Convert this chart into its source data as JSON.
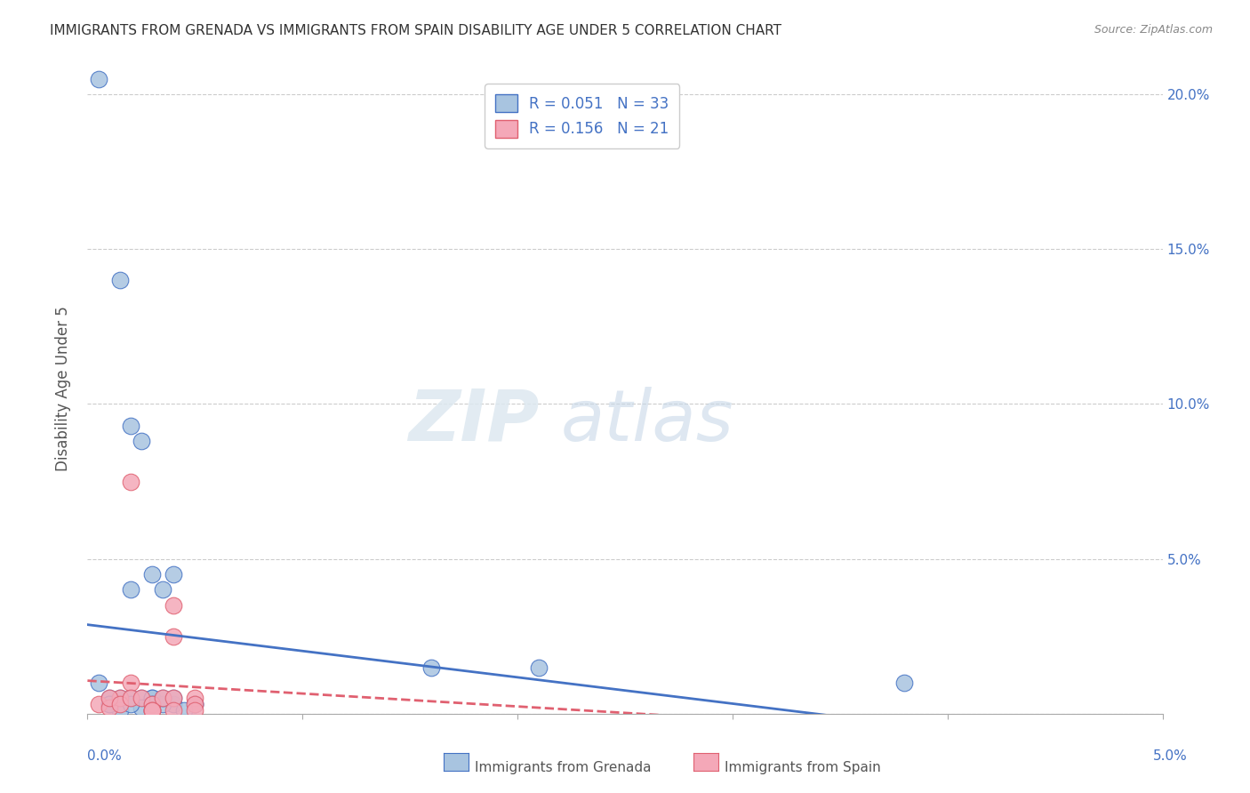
{
  "title": "IMMIGRANTS FROM GRENADA VS IMMIGRANTS FROM SPAIN DISABILITY AGE UNDER 5 CORRELATION CHART",
  "source": "Source: ZipAtlas.com",
  "ylabel": "Disability Age Under 5",
  "yticks": [
    0.0,
    0.05,
    0.1,
    0.15,
    0.2
  ],
  "ytick_labels": [
    "",
    "5.0%",
    "10.0%",
    "15.0%",
    "20.0%"
  ],
  "xlim": [
    0.0,
    0.05
  ],
  "ylim": [
    0.0,
    0.21
  ],
  "grenada_R": "0.051",
  "grenada_N": "33",
  "spain_R": "0.156",
  "spain_N": "21",
  "grenada_color": "#a8c4e0",
  "spain_color": "#f4a8b8",
  "grenada_line_color": "#4472c4",
  "spain_line_color": "#e06070",
  "watermark_zip": "ZIP",
  "watermark_atlas": "atlas",
  "grenada_x": [
    0.0005,
    0.001,
    0.0015,
    0.001,
    0.002,
    0.002,
    0.0025,
    0.003,
    0.003,
    0.0015,
    0.0025,
    0.002,
    0.003,
    0.0035,
    0.004,
    0.003,
    0.003,
    0.0035,
    0.004,
    0.004,
    0.005,
    0.005,
    0.0045,
    0.003,
    0.0025,
    0.002,
    0.0015,
    0.0005,
    0.001,
    0.0035,
    0.016,
    0.021,
    0.038
  ],
  "grenada_y": [
    0.01,
    0.005,
    0.005,
    0.003,
    0.005,
    0.04,
    0.005,
    0.045,
    0.005,
    0.001,
    0.002,
    0.003,
    0.003,
    0.04,
    0.003,
    0.005,
    0.001,
    0.003,
    0.045,
    0.005,
    0.003,
    0.003,
    0.001,
    0.003,
    0.088,
    0.093,
    0.14,
    0.205,
    0.003,
    0.005,
    0.015,
    0.015,
    0.01
  ],
  "spain_x": [
    0.0005,
    0.001,
    0.0015,
    0.001,
    0.002,
    0.0015,
    0.002,
    0.0025,
    0.003,
    0.003,
    0.003,
    0.0035,
    0.004,
    0.004,
    0.004,
    0.005,
    0.005,
    0.005,
    0.003,
    0.004,
    0.002
  ],
  "spain_y": [
    0.003,
    0.002,
    0.005,
    0.005,
    0.01,
    0.003,
    0.005,
    0.005,
    0.001,
    0.003,
    0.001,
    0.005,
    0.005,
    0.035,
    0.025,
    0.005,
    0.003,
    0.001,
    0.001,
    0.001,
    0.075
  ]
}
